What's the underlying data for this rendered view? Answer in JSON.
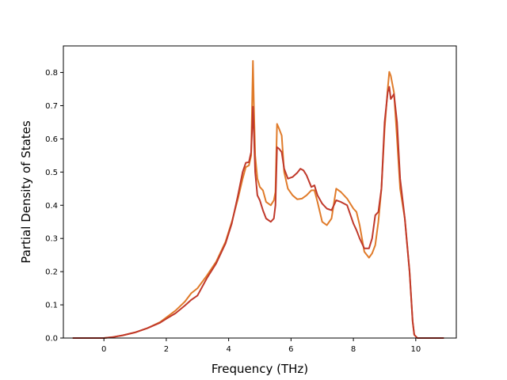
{
  "chart_data": {
    "type": "line",
    "title": "",
    "xlabel": "Frequency (THz)",
    "ylabel": "Partial Density of States",
    "xlim": [
      -1.3,
      11.3
    ],
    "ylim": [
      0.0,
      0.88
    ],
    "xticks": [
      0,
      2,
      4,
      6,
      8,
      10
    ],
    "xtick_labels": [
      "0",
      "2",
      "4",
      "6",
      "8",
      "10"
    ],
    "yticks": [
      0.0,
      0.1,
      0.2,
      0.3,
      0.4,
      0.5,
      0.6,
      0.7,
      0.8
    ],
    "ytick_labels": [
      "0.0",
      "0.1",
      "0.2",
      "0.3",
      "0.4",
      "0.5",
      "0.6",
      "0.7",
      "0.8"
    ],
    "grid": false,
    "legend": "none",
    "series": [
      {
        "color": "#e07b2a",
        "points": [
          [
            -1.0,
            0.0
          ],
          [
            0.0,
            0.0
          ],
          [
            0.3,
            0.003
          ],
          [
            0.6,
            0.008
          ],
          [
            1.0,
            0.017
          ],
          [
            1.4,
            0.03
          ],
          [
            1.8,
            0.048
          ],
          [
            2.0,
            0.062
          ],
          [
            2.3,
            0.083
          ],
          [
            2.6,
            0.11
          ],
          [
            2.8,
            0.135
          ],
          [
            3.0,
            0.15
          ],
          [
            3.3,
            0.188
          ],
          [
            3.6,
            0.23
          ],
          [
            3.9,
            0.29
          ],
          [
            4.1,
            0.35
          ],
          [
            4.3,
            0.42
          ],
          [
            4.45,
            0.48
          ],
          [
            4.55,
            0.515
          ],
          [
            4.65,
            0.52
          ],
          [
            4.72,
            0.55
          ],
          [
            4.76,
            0.75
          ],
          [
            4.78,
            0.835
          ],
          [
            4.81,
            0.7
          ],
          [
            4.85,
            0.55
          ],
          [
            4.92,
            0.48
          ],
          [
            5.0,
            0.455
          ],
          [
            5.1,
            0.445
          ],
          [
            5.2,
            0.41
          ],
          [
            5.35,
            0.4
          ],
          [
            5.45,
            0.415
          ],
          [
            5.5,
            0.44
          ],
          [
            5.55,
            0.645
          ],
          [
            5.62,
            0.63
          ],
          [
            5.7,
            0.61
          ],
          [
            5.78,
            0.5
          ],
          [
            5.9,
            0.45
          ],
          [
            6.05,
            0.43
          ],
          [
            6.2,
            0.418
          ],
          [
            6.35,
            0.42
          ],
          [
            6.5,
            0.43
          ],
          [
            6.65,
            0.445
          ],
          [
            6.75,
            0.445
          ],
          [
            6.85,
            0.41
          ],
          [
            7.0,
            0.35
          ],
          [
            7.15,
            0.34
          ],
          [
            7.3,
            0.36
          ],
          [
            7.45,
            0.45
          ],
          [
            7.6,
            0.44
          ],
          [
            7.8,
            0.42
          ],
          [
            8.0,
            0.39
          ],
          [
            8.1,
            0.38
          ],
          [
            8.2,
            0.34
          ],
          [
            8.35,
            0.26
          ],
          [
            8.5,
            0.242
          ],
          [
            8.6,
            0.255
          ],
          [
            8.7,
            0.28
          ],
          [
            8.8,
            0.35
          ],
          [
            8.9,
            0.45
          ],
          [
            9.0,
            0.63
          ],
          [
            9.1,
            0.75
          ],
          [
            9.15,
            0.802
          ],
          [
            9.2,
            0.79
          ],
          [
            9.3,
            0.74
          ],
          [
            9.4,
            0.6
          ],
          [
            9.5,
            0.45
          ],
          [
            9.65,
            0.36
          ],
          [
            9.8,
            0.2
          ],
          [
            9.9,
            0.05
          ],
          [
            9.95,
            0.01
          ],
          [
            10.05,
            0.0
          ],
          [
            10.9,
            0.0
          ]
        ]
      },
      {
        "color": "#c0392b",
        "points": [
          [
            -1.0,
            0.0
          ],
          [
            0.0,
            0.0
          ],
          [
            0.3,
            0.003
          ],
          [
            0.6,
            0.008
          ],
          [
            1.0,
            0.017
          ],
          [
            1.4,
            0.03
          ],
          [
            1.8,
            0.046
          ],
          [
            2.0,
            0.058
          ],
          [
            2.3,
            0.075
          ],
          [
            2.6,
            0.098
          ],
          [
            2.8,
            0.115
          ],
          [
            3.0,
            0.128
          ],
          [
            3.3,
            0.18
          ],
          [
            3.6,
            0.225
          ],
          [
            3.9,
            0.285
          ],
          [
            4.1,
            0.345
          ],
          [
            4.3,
            0.43
          ],
          [
            4.45,
            0.5
          ],
          [
            4.55,
            0.528
          ],
          [
            4.65,
            0.53
          ],
          [
            4.72,
            0.56
          ],
          [
            4.76,
            0.65
          ],
          [
            4.78,
            0.697
          ],
          [
            4.81,
            0.62
          ],
          [
            4.85,
            0.5
          ],
          [
            4.92,
            0.43
          ],
          [
            5.0,
            0.415
          ],
          [
            5.1,
            0.385
          ],
          [
            5.2,
            0.36
          ],
          [
            5.35,
            0.35
          ],
          [
            5.45,
            0.36
          ],
          [
            5.5,
            0.4
          ],
          [
            5.55,
            0.575
          ],
          [
            5.62,
            0.57
          ],
          [
            5.7,
            0.56
          ],
          [
            5.78,
            0.51
          ],
          [
            5.9,
            0.48
          ],
          [
            6.05,
            0.485
          ],
          [
            6.2,
            0.498
          ],
          [
            6.3,
            0.51
          ],
          [
            6.4,
            0.505
          ],
          [
            6.5,
            0.49
          ],
          [
            6.65,
            0.455
          ],
          [
            6.75,
            0.46
          ],
          [
            6.85,
            0.43
          ],
          [
            7.0,
            0.405
          ],
          [
            7.15,
            0.39
          ],
          [
            7.3,
            0.385
          ],
          [
            7.45,
            0.415
          ],
          [
            7.6,
            0.41
          ],
          [
            7.8,
            0.4
          ],
          [
            8.0,
            0.345
          ],
          [
            8.1,
            0.325
          ],
          [
            8.2,
            0.3
          ],
          [
            8.35,
            0.27
          ],
          [
            8.5,
            0.27
          ],
          [
            8.6,
            0.3
          ],
          [
            8.7,
            0.37
          ],
          [
            8.8,
            0.38
          ],
          [
            8.9,
            0.45
          ],
          [
            9.0,
            0.65
          ],
          [
            9.1,
            0.74
          ],
          [
            9.15,
            0.757
          ],
          [
            9.2,
            0.72
          ],
          [
            9.3,
            0.735
          ],
          [
            9.4,
            0.65
          ],
          [
            9.5,
            0.48
          ],
          [
            9.65,
            0.36
          ],
          [
            9.8,
            0.2
          ],
          [
            9.9,
            0.05
          ],
          [
            9.95,
            0.01
          ],
          [
            10.05,
            0.0
          ],
          [
            10.9,
            0.0
          ]
        ]
      }
    ]
  }
}
